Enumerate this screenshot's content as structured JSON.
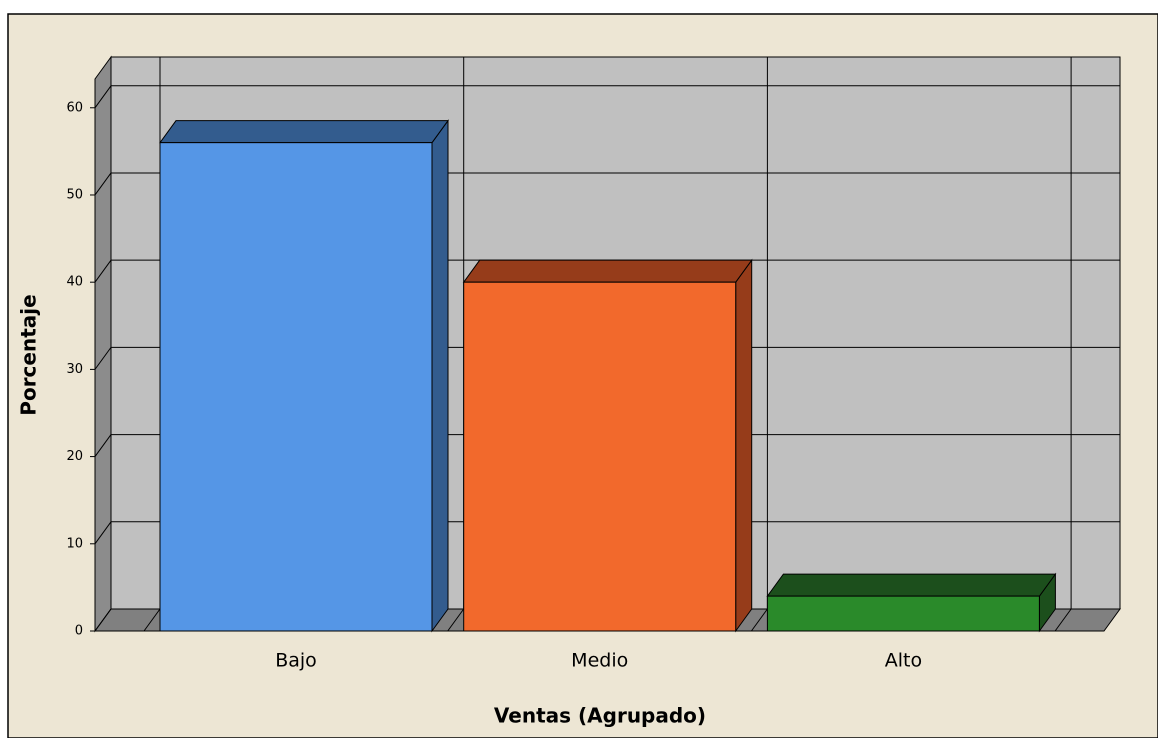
{
  "chart_data": {
    "type": "bar3d",
    "categories": [
      "Bajo",
      "Medio",
      "Alto"
    ],
    "values": [
      56,
      40,
      4
    ],
    "colors": [
      "#5596e6",
      "#f2692c",
      "#2a8a2a"
    ],
    "top_colors": [
      "#335c8e",
      "#963c1a",
      "#1c4f1c"
    ],
    "xlabel": "Ventas (Agrupado)",
    "ylabel": "Porcentaje",
    "ylim": [
      0,
      63.3
    ],
    "yticks": [
      0,
      10,
      20,
      30,
      40,
      50,
      60
    ],
    "grid": true
  }
}
